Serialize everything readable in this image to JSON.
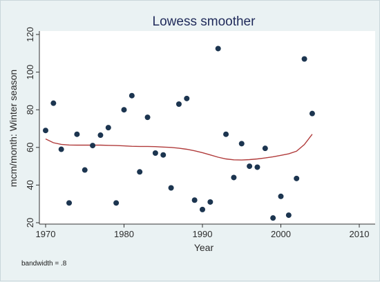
{
  "chart_data": {
    "type": "scatter",
    "title": "Lowess smoother",
    "xlabel": "Year",
    "ylabel": "mcm/month: Winter season",
    "xlim": [
      1970,
      2010
    ],
    "ylim": [
      20,
      120
    ],
    "x_ticks": [
      "1970",
      "1980",
      "1990",
      "2000",
      "2010"
    ],
    "y_ticks": [
      "20",
      "40",
      "60",
      "80",
      "100",
      "120"
    ],
    "grid": false,
    "points": [
      {
        "x": 1970,
        "y": 69
      },
      {
        "x": 1971,
        "y": 83.5
      },
      {
        "x": 1972,
        "y": 59
      },
      {
        "x": 1973,
        "y": 30.5
      },
      {
        "x": 1974,
        "y": 67
      },
      {
        "x": 1975,
        "y": 48
      },
      {
        "x": 1976,
        "y": 61
      },
      {
        "x": 1977,
        "y": 66.5
      },
      {
        "x": 1978,
        "y": 70.5
      },
      {
        "x": 1979,
        "y": 30.5
      },
      {
        "x": 1980,
        "y": 80
      },
      {
        "x": 1981,
        "y": 87.5
      },
      {
        "x": 1982,
        "y": 47
      },
      {
        "x": 1983,
        "y": 76
      },
      {
        "x": 1984,
        "y": 57
      },
      {
        "x": 1985,
        "y": 56
      },
      {
        "x": 1986,
        "y": 38.5
      },
      {
        "x": 1987,
        "y": 83
      },
      {
        "x": 1988,
        "y": 86
      },
      {
        "x": 1989,
        "y": 32
      },
      {
        "x": 1990,
        "y": 27
      },
      {
        "x": 1991,
        "y": 31
      },
      {
        "x": 1992,
        "y": 112.5
      },
      {
        "x": 1993,
        "y": 67
      },
      {
        "x": 1994,
        "y": 44
      },
      {
        "x": 1995,
        "y": 62
      },
      {
        "x": 1996,
        "y": 50
      },
      {
        "x": 1997,
        "y": 49.5
      },
      {
        "x": 1998,
        "y": 59.5
      },
      {
        "x": 1999,
        "y": 22.5
      },
      {
        "x": 2000,
        "y": 34
      },
      {
        "x": 2001,
        "y": 24
      },
      {
        "x": 2002,
        "y": 43.5
      },
      {
        "x": 2003,
        "y": 107
      },
      {
        "x": 2004,
        "y": 78
      }
    ],
    "smoother": {
      "x": [
        1970,
        1971,
        1972,
        1973,
        1974,
        1975,
        1976,
        1977,
        1978,
        1979,
        1980,
        1981,
        1982,
        1983,
        1984,
        1985,
        1986,
        1987,
        1988,
        1989,
        1990,
        1991,
        1992,
        1993,
        1994,
        1995,
        1996,
        1997,
        1998,
        1999,
        2000,
        2001,
        2002,
        2003,
        2004
      ],
      "y": [
        64.5,
        62.5,
        61.6,
        61.3,
        61.2,
        61.2,
        61.2,
        61.2,
        61.1,
        61.0,
        60.8,
        60.6,
        60.5,
        60.5,
        60.4,
        60.2,
        60.0,
        59.6,
        59.0,
        58.2,
        57.2,
        56.0,
        54.8,
        53.9,
        53.4,
        53.3,
        53.5,
        53.9,
        54.4,
        55.0,
        55.8,
        56.6,
        58.0,
        61.5,
        67.0
      ],
      "color": "#b03a3a"
    },
    "marker_color": "#1c3550",
    "note": "bandwidth = .8"
  }
}
